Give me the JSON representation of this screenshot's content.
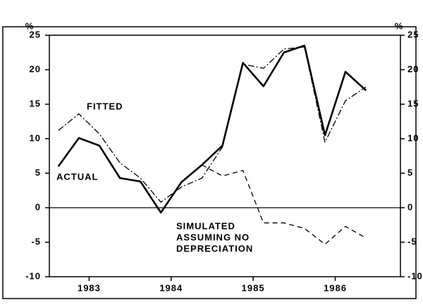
{
  "chart_data": {
    "type": "line",
    "y_unit": "%",
    "y2_unit": "%",
    "x": [
      1983,
      1983.25,
      1983.5,
      1983.75,
      1984,
      1984.25,
      1984.5,
      1984.75,
      1985,
      1985.25,
      1985.5,
      1985.75,
      1986,
      1986.25,
      1986.5,
      1986.75
    ],
    "xlim": [
      1982.89,
      1987.17
    ],
    "xticks": [
      {
        "value": 1983.375,
        "label": "1983"
      },
      {
        "value": 1984.375,
        "label": "1984"
      },
      {
        "value": 1985.375,
        "label": "1985"
      },
      {
        "value": 1986.375,
        "label": "1986"
      }
    ],
    "ylim": [
      -10,
      25
    ],
    "yticks": [
      -10,
      -5,
      0,
      5,
      10,
      15,
      20,
      25
    ],
    "y2lim": [
      -10,
      25
    ],
    "y2ticks": [
      -10,
      -5,
      0,
      5,
      10,
      15,
      20,
      25
    ],
    "series": [
      {
        "name": "ACTUAL",
        "color": "#000000",
        "style": "solid",
        "values": [
          6,
          10.1,
          9,
          4.3,
          3.8,
          -0.7,
          3.7,
          6.2,
          9,
          21,
          17.6,
          22.5,
          23.5,
          10.5,
          19.7,
          17
        ]
      },
      {
        "name": "FITTED",
        "color": "#000000",
        "style": "dashdot",
        "values": [
          11.2,
          13.6,
          10.7,
          6.5,
          4.3,
          0.8,
          3,
          4.3,
          8.8,
          20.8,
          20.2,
          23,
          23.3,
          9.5,
          15.5,
          17.5
        ]
      },
      {
        "name": [
          "SIMULATED",
          "ASSUMING NO",
          "DEPRECIATION"
        ],
        "color": "#000000",
        "style": "dashed",
        "values": [
          null,
          null,
          null,
          null,
          null,
          null,
          null,
          6.2,
          4.6,
          5.4,
          -2.2,
          -2.2,
          -3,
          -5.3,
          -2.7,
          -4.4
        ]
      }
    ]
  }
}
